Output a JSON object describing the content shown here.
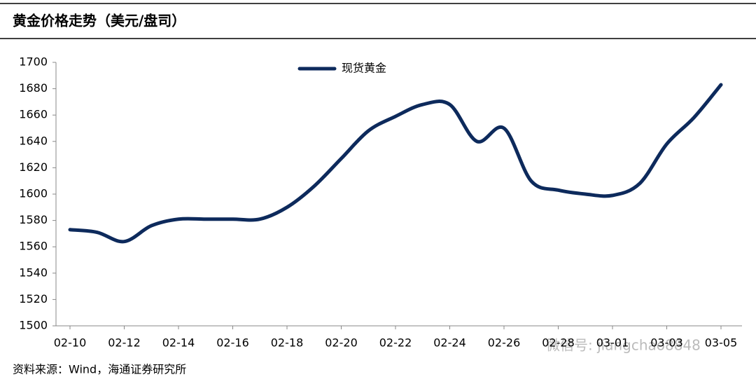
{
  "chart_data": {
    "type": "line",
    "title": "黄金价格走势（美元/盘司）",
    "source": "资料来源：Wind，海通证券研究所",
    "watermark": "微信号: jiangchao8848",
    "categories": [
      "02-10",
      null,
      "02-12",
      null,
      "02-14",
      null,
      "02-16",
      null,
      "02-18",
      null,
      "02-20",
      null,
      "02-22",
      null,
      "02-24",
      null,
      "02-26",
      null,
      "02-28",
      null,
      "03-01",
      null,
      "03-03",
      null,
      "03-05"
    ],
    "series": [
      {
        "name": "现货黄金",
        "color": "#0d2a5c",
        "values": [
          1573,
          1571,
          1564,
          1576,
          1581,
          1581,
          1581,
          1581,
          1590,
          1606,
          1627,
          1648,
          1659,
          1668,
          1668,
          1640,
          1650,
          1610,
          1603,
          1600,
          1599,
          1608,
          1638,
          1658,
          1683
        ]
      }
    ],
    "ylim": [
      1500,
      1700
    ],
    "yticks": [
      1500,
      1520,
      1540,
      1560,
      1580,
      1600,
      1620,
      1640,
      1660,
      1680,
      1700
    ]
  }
}
